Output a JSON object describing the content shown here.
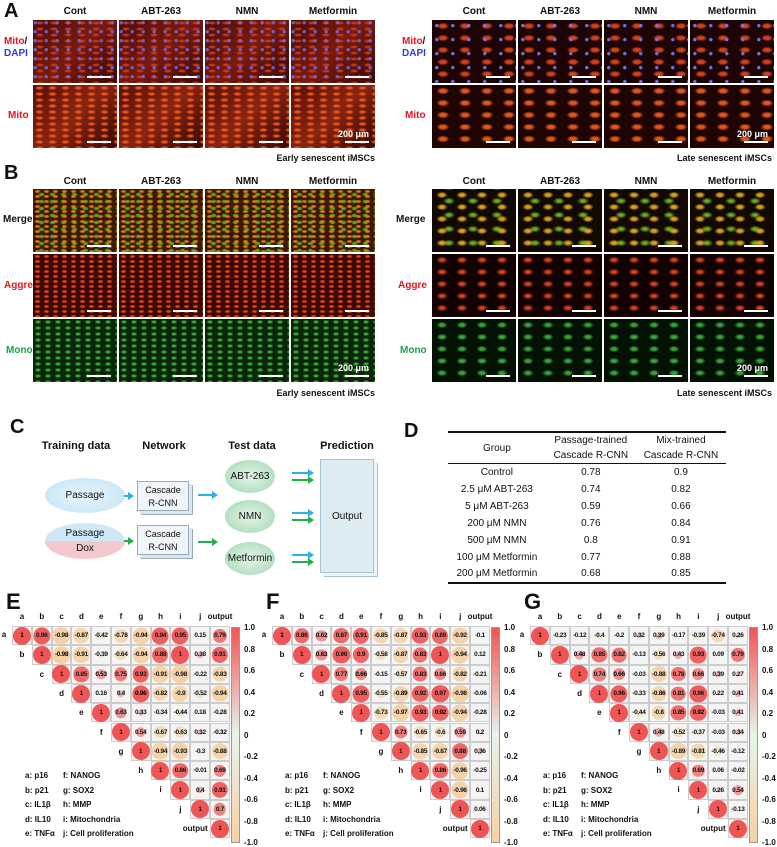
{
  "panel_labels": {
    "A": "A",
    "B": "B",
    "C": "C",
    "D": "D",
    "E": "E",
    "F": "F",
    "G": "G"
  },
  "columns": [
    "Cont",
    "ABT-263",
    "NMN",
    "Metformin"
  ],
  "scale_bar": "200 μm",
  "panelA": {
    "row_labels": {
      "mito": "Mito",
      "slash": "/",
      "dapi": "DAPI"
    },
    "early_caption": "Early senescent iMSCs",
    "late_caption": "Late  senescent iMSCs",
    "colors": {
      "mito": "#e8141c",
      "dapi": "#2a3ee0"
    }
  },
  "panelB": {
    "row_labels": {
      "merge": "Merge",
      "aggre": "Aggre",
      "mono": "Mono"
    },
    "early_caption": "Early senescent iMSCs",
    "late_caption": "Late  senescent iMSCs",
    "colors": {
      "aggre": "#e8141c",
      "mono": "#1aa04a"
    }
  },
  "panelC": {
    "headers": [
      "Training data",
      "Network",
      "Test data",
      "Prediction"
    ],
    "training": [
      "Passage",
      "Passage",
      "Dox"
    ],
    "network": [
      "Cascade",
      "R-CNN"
    ],
    "test": [
      "ABT-263",
      "NMN",
      "Metformin"
    ],
    "output": "Output",
    "colors": {
      "passage_arrow": "#2ab0ec",
      "mix_arrow": "#1fb04a"
    }
  },
  "panelD": {
    "headers": [
      "Group",
      "Passage-trained",
      "Cascade R-CNN",
      "Mix-trained",
      "Cascade R-CNN"
    ],
    "rows": [
      [
        "Control",
        "0.78",
        "0.9"
      ],
      [
        "2.5 μM ABT-263",
        "0.74",
        "0.82"
      ],
      [
        "5 μM ABT-263",
        "0.59",
        "0.66"
      ],
      [
        "200 μM NMN",
        "0.76",
        "0.84"
      ],
      [
        "500 μM NMN",
        "0.8",
        "0.91"
      ],
      [
        "100 μM Metformin",
        "0.77",
        "0.88"
      ],
      [
        "200 μM Metformin",
        "0.68",
        "0.85"
      ]
    ]
  },
  "correlation": {
    "variables": [
      "a",
      "b",
      "c",
      "d",
      "e",
      "f",
      "g",
      "h",
      "i",
      "j",
      "output"
    ],
    "legend": [
      "a: p16",
      "b: p21",
      "c: IL1β",
      "d: IL10",
      "e: TNFα",
      "f: NANOG",
      "g: SOX2",
      "h: MMP",
      "i: Mitochondria",
      "j: Cell proliferation"
    ],
    "colorbar_ticks": [
      "1.0",
      "0.8",
      "0.6",
      "0.4",
      "0.2",
      "0",
      "-0.2",
      "-0.4",
      "-0.6",
      "-0.8",
      "-1.0"
    ],
    "colors": {
      "positive": "#f05555",
      "zero": "#e7f3ec",
      "negative": "#f6d0a4"
    },
    "matrices": {
      "E": [
        [
          1,
          0.96,
          -0.98,
          -0.87,
          -0.42,
          -0.78,
          -0.94,
          0.94,
          0.95,
          0.15,
          0.79
        ],
        [
          1,
          -0.98,
          -0.91,
          -0.39,
          -0.64,
          -0.94,
          0.88,
          1,
          0.38,
          0.91
        ],
        [
          1,
          0.85,
          0.53,
          0.75,
          0.93,
          -0.91,
          -0.98,
          -0.22,
          -0.83
        ],
        [
          1,
          0.16,
          0.4,
          0.96,
          -0.82,
          -0.9,
          -0.52,
          -0.94
        ],
        [
          1,
          0.63,
          0.33,
          -0.34,
          -0.44,
          0.18,
          -0.28
        ],
        [
          1,
          0.54,
          -0.67,
          -0.63,
          0.32,
          -0.32
        ],
        [
          1,
          -0.94,
          -0.93,
          -0.3,
          -0.88
        ],
        [
          1,
          0.86,
          -0.01,
          0.69
        ],
        [
          1,
          0.4,
          0.91
        ],
        [
          1,
          0.7
        ],
        [
          1
        ]
      ],
      "F": [
        [
          1,
          0.86,
          0.62,
          0.87,
          0.91,
          -0.85,
          -0.87,
          0.93,
          0.89,
          -0.92,
          -0.1
        ],
        [
          1,
          0.63,
          0.96,
          0.9,
          -0.58,
          -0.87,
          0.83,
          1,
          -0.94,
          0.12
        ],
        [
          1,
          0.77,
          0.66,
          -0.15,
          -0.57,
          0.83,
          0.66,
          -0.82,
          -0.21
        ],
        [
          1,
          0.95,
          -0.55,
          -0.89,
          0.92,
          0.97,
          -0.98,
          -0.06
        ],
        [
          1,
          -0.73,
          -0.97,
          0.93,
          0.92,
          -0.94,
          -0.28
        ],
        [
          1,
          0.73,
          -0.65,
          -0.6,
          0.59,
          0.2
        ],
        [
          1,
          -0.85,
          -0.87,
          0.88,
          0.36
        ],
        [
          1,
          0.86,
          -0.96,
          -0.25
        ],
        [
          1,
          -0.96,
          0.1
        ],
        [
          1,
          0.06
        ],
        [
          1
        ]
      ],
      "G": [
        [
          1,
          -0.23,
          -0.12,
          -0.4,
          -0.2,
          0.32,
          0.39,
          -0.17,
          -0.39,
          -0.74,
          0.26
        ],
        [
          1,
          0.48,
          0.85,
          0.82,
          -0.13,
          -0.56,
          0.43,
          0.93,
          0.09,
          0.79
        ],
        [
          1,
          0.74,
          0.66,
          -0.03,
          -0.88,
          0.78,
          0.66,
          0.39,
          0.27
        ],
        [
          1,
          0.96,
          -0.33,
          -0.86,
          0.81,
          0.96,
          0.22,
          0.41
        ],
        [
          1,
          -0.44,
          -0.8,
          0.85,
          0.92,
          -0.03,
          0.41
        ],
        [
          1,
          0.48,
          -0.52,
          -0.37,
          -0.03,
          0.34
        ],
        [
          1,
          -0.89,
          -0.81,
          -0.46,
          -0.12
        ],
        [
          1,
          0.69,
          0.06,
          -0.02
        ],
        [
          1,
          0.26,
          0.54
        ],
        [
          1,
          -0.13
        ],
        [
          1
        ]
      ]
    }
  }
}
